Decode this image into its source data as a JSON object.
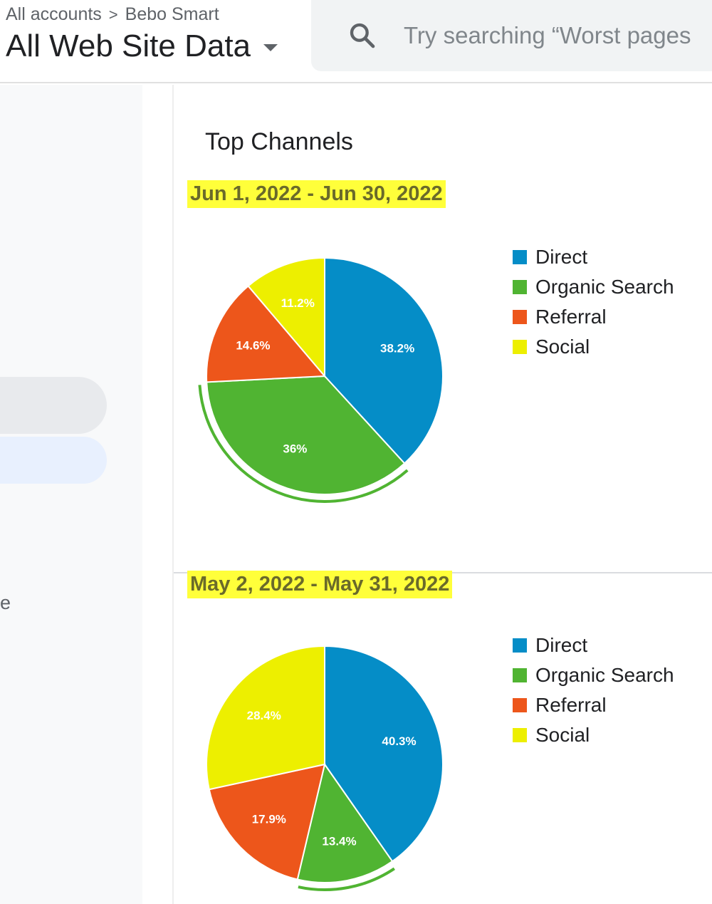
{
  "header": {
    "breadcrumb": [
      "All accounts",
      "Bebo Smart"
    ],
    "breadcrumb_separator": ">",
    "view_title": "All Web Site Data",
    "search_placeholder": "Try searching “Worst pages"
  },
  "sidebar": {
    "partial_text": "e"
  },
  "main": {
    "section_title": "Top Channels"
  },
  "colors": {
    "Direct": "#058dc7",
    "Organic Search": "#50b432",
    "Referral": "#ed561b",
    "Social": "#edef00",
    "highlight": "#ffff3a"
  },
  "chart_data": [
    {
      "type": "pie",
      "date_range": "Jun 1, 2022 - Jun 30, 2022",
      "categories": [
        "Direct",
        "Organic Search",
        "Referral",
        "Social"
      ],
      "values": [
        38.2,
        36,
        14.6,
        11.2
      ],
      "labels": [
        "38.2%",
        "36%",
        "14.6%",
        "11.2%"
      ],
      "legend": [
        "Direct",
        "Organic Search",
        "Referral",
        "Social"
      ],
      "legend_position": "right",
      "selected_slice": "Organic Search"
    },
    {
      "type": "pie",
      "date_range": "May 2, 2022 - May 31, 2022",
      "categories": [
        "Direct",
        "Organic Search",
        "Referral",
        "Social"
      ],
      "values": [
        40.3,
        13.4,
        17.9,
        28.4
      ],
      "labels": [
        "40.3%",
        "13.4%",
        "17.9%",
        "28.4%"
      ],
      "legend": [
        "Direct",
        "Organic Search",
        "Referral",
        "Social"
      ],
      "legend_position": "right",
      "selected_slice": "Organic Search"
    }
  ]
}
